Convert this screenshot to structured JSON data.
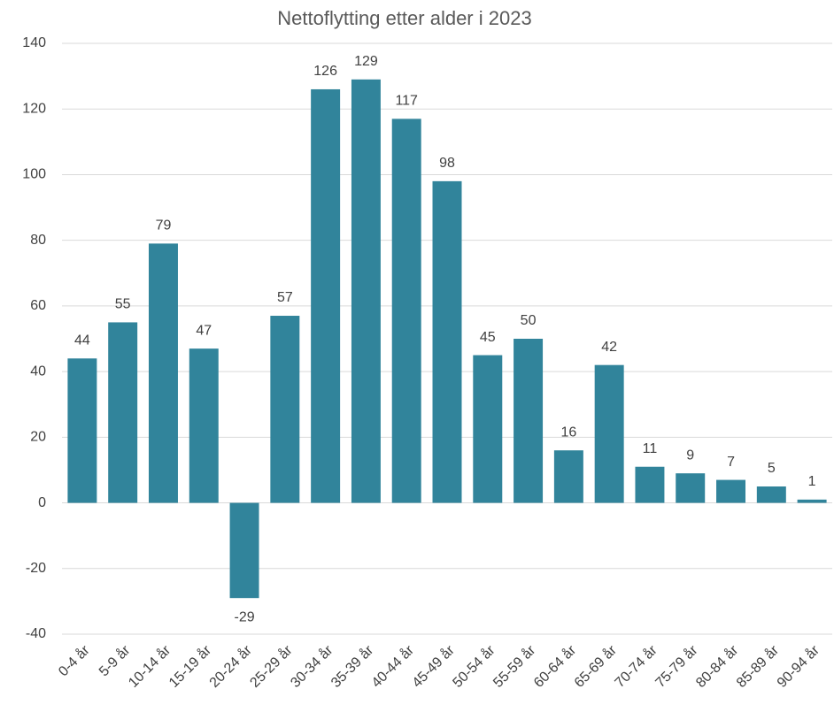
{
  "chart_data": {
    "type": "bar",
    "title": "Nettoflytting etter alder i 2023",
    "categories": [
      "0-4 år",
      "5-9 år",
      "10-14 år",
      "15-19 år",
      "20-24 år",
      "25-29 år",
      "30-34 år",
      "35-39 år",
      "40-44 år",
      "45-49 år",
      "50-54 år",
      "55-59 år",
      "60-64 år",
      "65-69 år",
      "70-74 år",
      "75-79 år",
      "80-84 år",
      "85-89 år",
      "90-94 år"
    ],
    "values": [
      44,
      55,
      79,
      47,
      -29,
      57,
      126,
      129,
      117,
      98,
      45,
      50,
      16,
      42,
      11,
      9,
      7,
      5,
      1
    ],
    "color": "#31849b",
    "ylim": [
      -40,
      140
    ],
    "yticks": [
      -40,
      -20,
      0,
      20,
      40,
      60,
      80,
      100,
      120,
      140
    ],
    "grid": true
  }
}
